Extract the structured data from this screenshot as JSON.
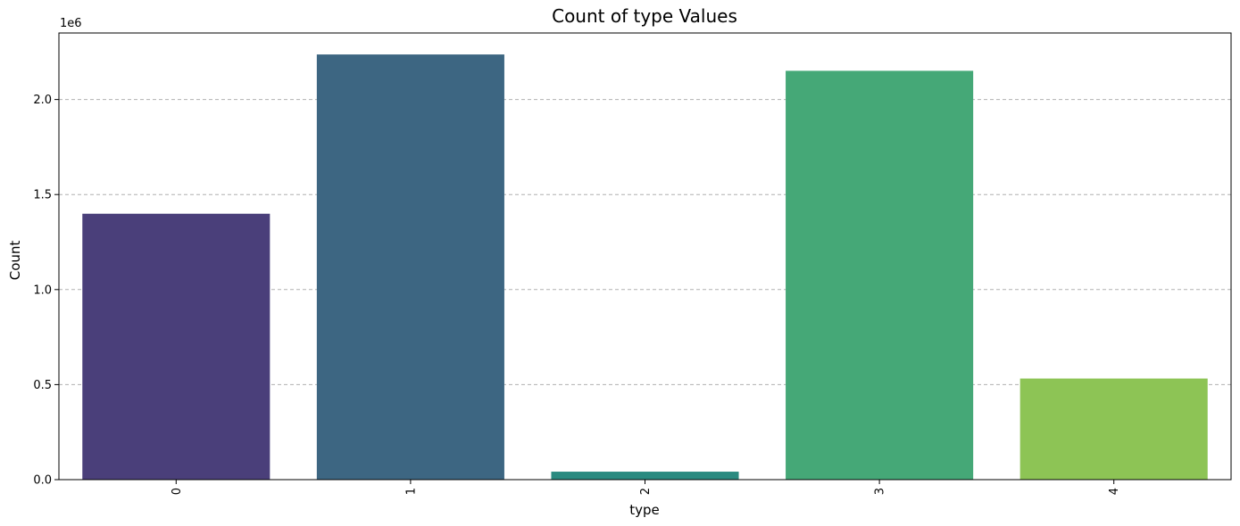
{
  "chart_data": {
    "type": "bar",
    "title": "Count of type Values",
    "xlabel": "type",
    "ylabel": "Count",
    "offset_text": "1e6",
    "categories": [
      "0",
      "1",
      "2",
      "3",
      "4"
    ],
    "values": [
      1399000,
      2237000,
      42000,
      2151000,
      532000
    ],
    "colors": [
      "#4a3f7a",
      "#3d6682",
      "#2a8a80",
      "#45a877",
      "#8dc455"
    ],
    "ylim": [
      0,
      2350000
    ],
    "yticks": [
      0,
      500000,
      1000000,
      1500000,
      2000000
    ],
    "ytick_labels": [
      "0.0",
      "0.5",
      "1.0",
      "1.5",
      "2.0"
    ],
    "grid": "horizontal-dashed",
    "xtick_rotation": "vertical"
  }
}
